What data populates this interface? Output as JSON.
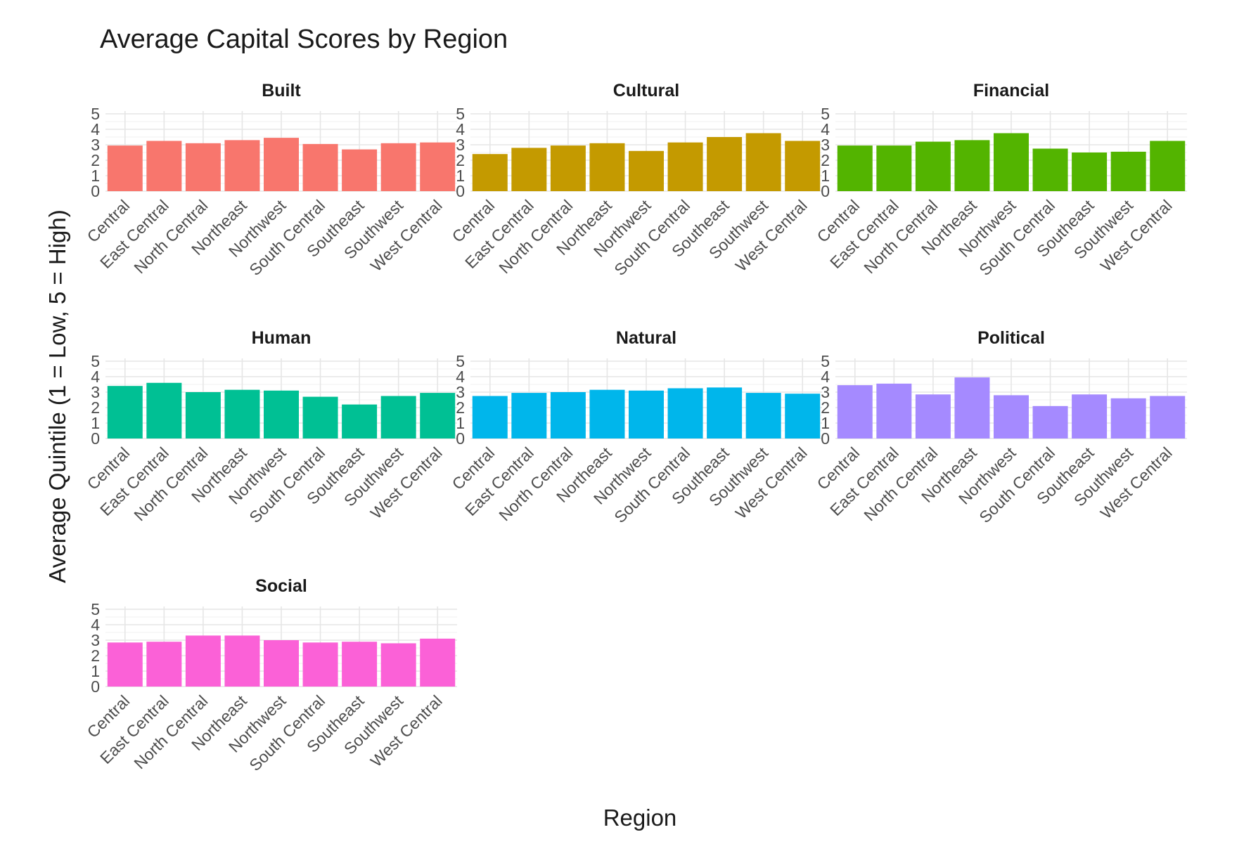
{
  "chart_data": {
    "type": "bar",
    "title": "Average Capital Scores by Region",
    "xlabel": "Region",
    "ylabel": "Average Quintile (1 = Low, 5 = High)",
    "ylim": [
      0,
      5
    ],
    "yticks": [
      "0",
      "1",
      "2",
      "3",
      "4",
      "5"
    ],
    "grid": true,
    "legend": "none",
    "categories": [
      "Central",
      "East Central",
      "North Central",
      "Northeast",
      "Northwest",
      "South Central",
      "Southeast",
      "Southwest",
      "West Central"
    ],
    "facets": [
      {
        "name": "Built",
        "color": "#F8766D",
        "values": [
          2.95,
          3.25,
          3.1,
          3.3,
          3.45,
          3.05,
          2.7,
          3.1,
          3.15
        ]
      },
      {
        "name": "Cultural",
        "color": "#C49A00",
        "values": [
          2.4,
          2.8,
          2.95,
          3.1,
          2.6,
          3.15,
          3.5,
          3.75,
          3.25
        ]
      },
      {
        "name": "Financial",
        "color": "#53B400",
        "values": [
          2.95,
          2.95,
          3.2,
          3.3,
          3.75,
          2.75,
          2.5,
          2.55,
          3.25
        ]
      },
      {
        "name": "Human",
        "color": "#00C094",
        "values": [
          3.4,
          3.6,
          3.0,
          3.15,
          3.1,
          2.7,
          2.2,
          2.75,
          2.95
        ]
      },
      {
        "name": "Natural",
        "color": "#00B6EB",
        "values": [
          2.75,
          2.95,
          3.0,
          3.15,
          3.1,
          3.25,
          3.3,
          2.95,
          2.9
        ]
      },
      {
        "name": "Political",
        "color": "#A58AFF",
        "values": [
          3.45,
          3.55,
          2.85,
          3.95,
          2.8,
          2.1,
          2.85,
          2.6,
          2.75
        ]
      },
      {
        "name": "Social",
        "color": "#FB61D7",
        "values": [
          2.85,
          2.9,
          3.3,
          3.3,
          3.0,
          2.85,
          2.9,
          2.8,
          3.1
        ]
      }
    ]
  }
}
